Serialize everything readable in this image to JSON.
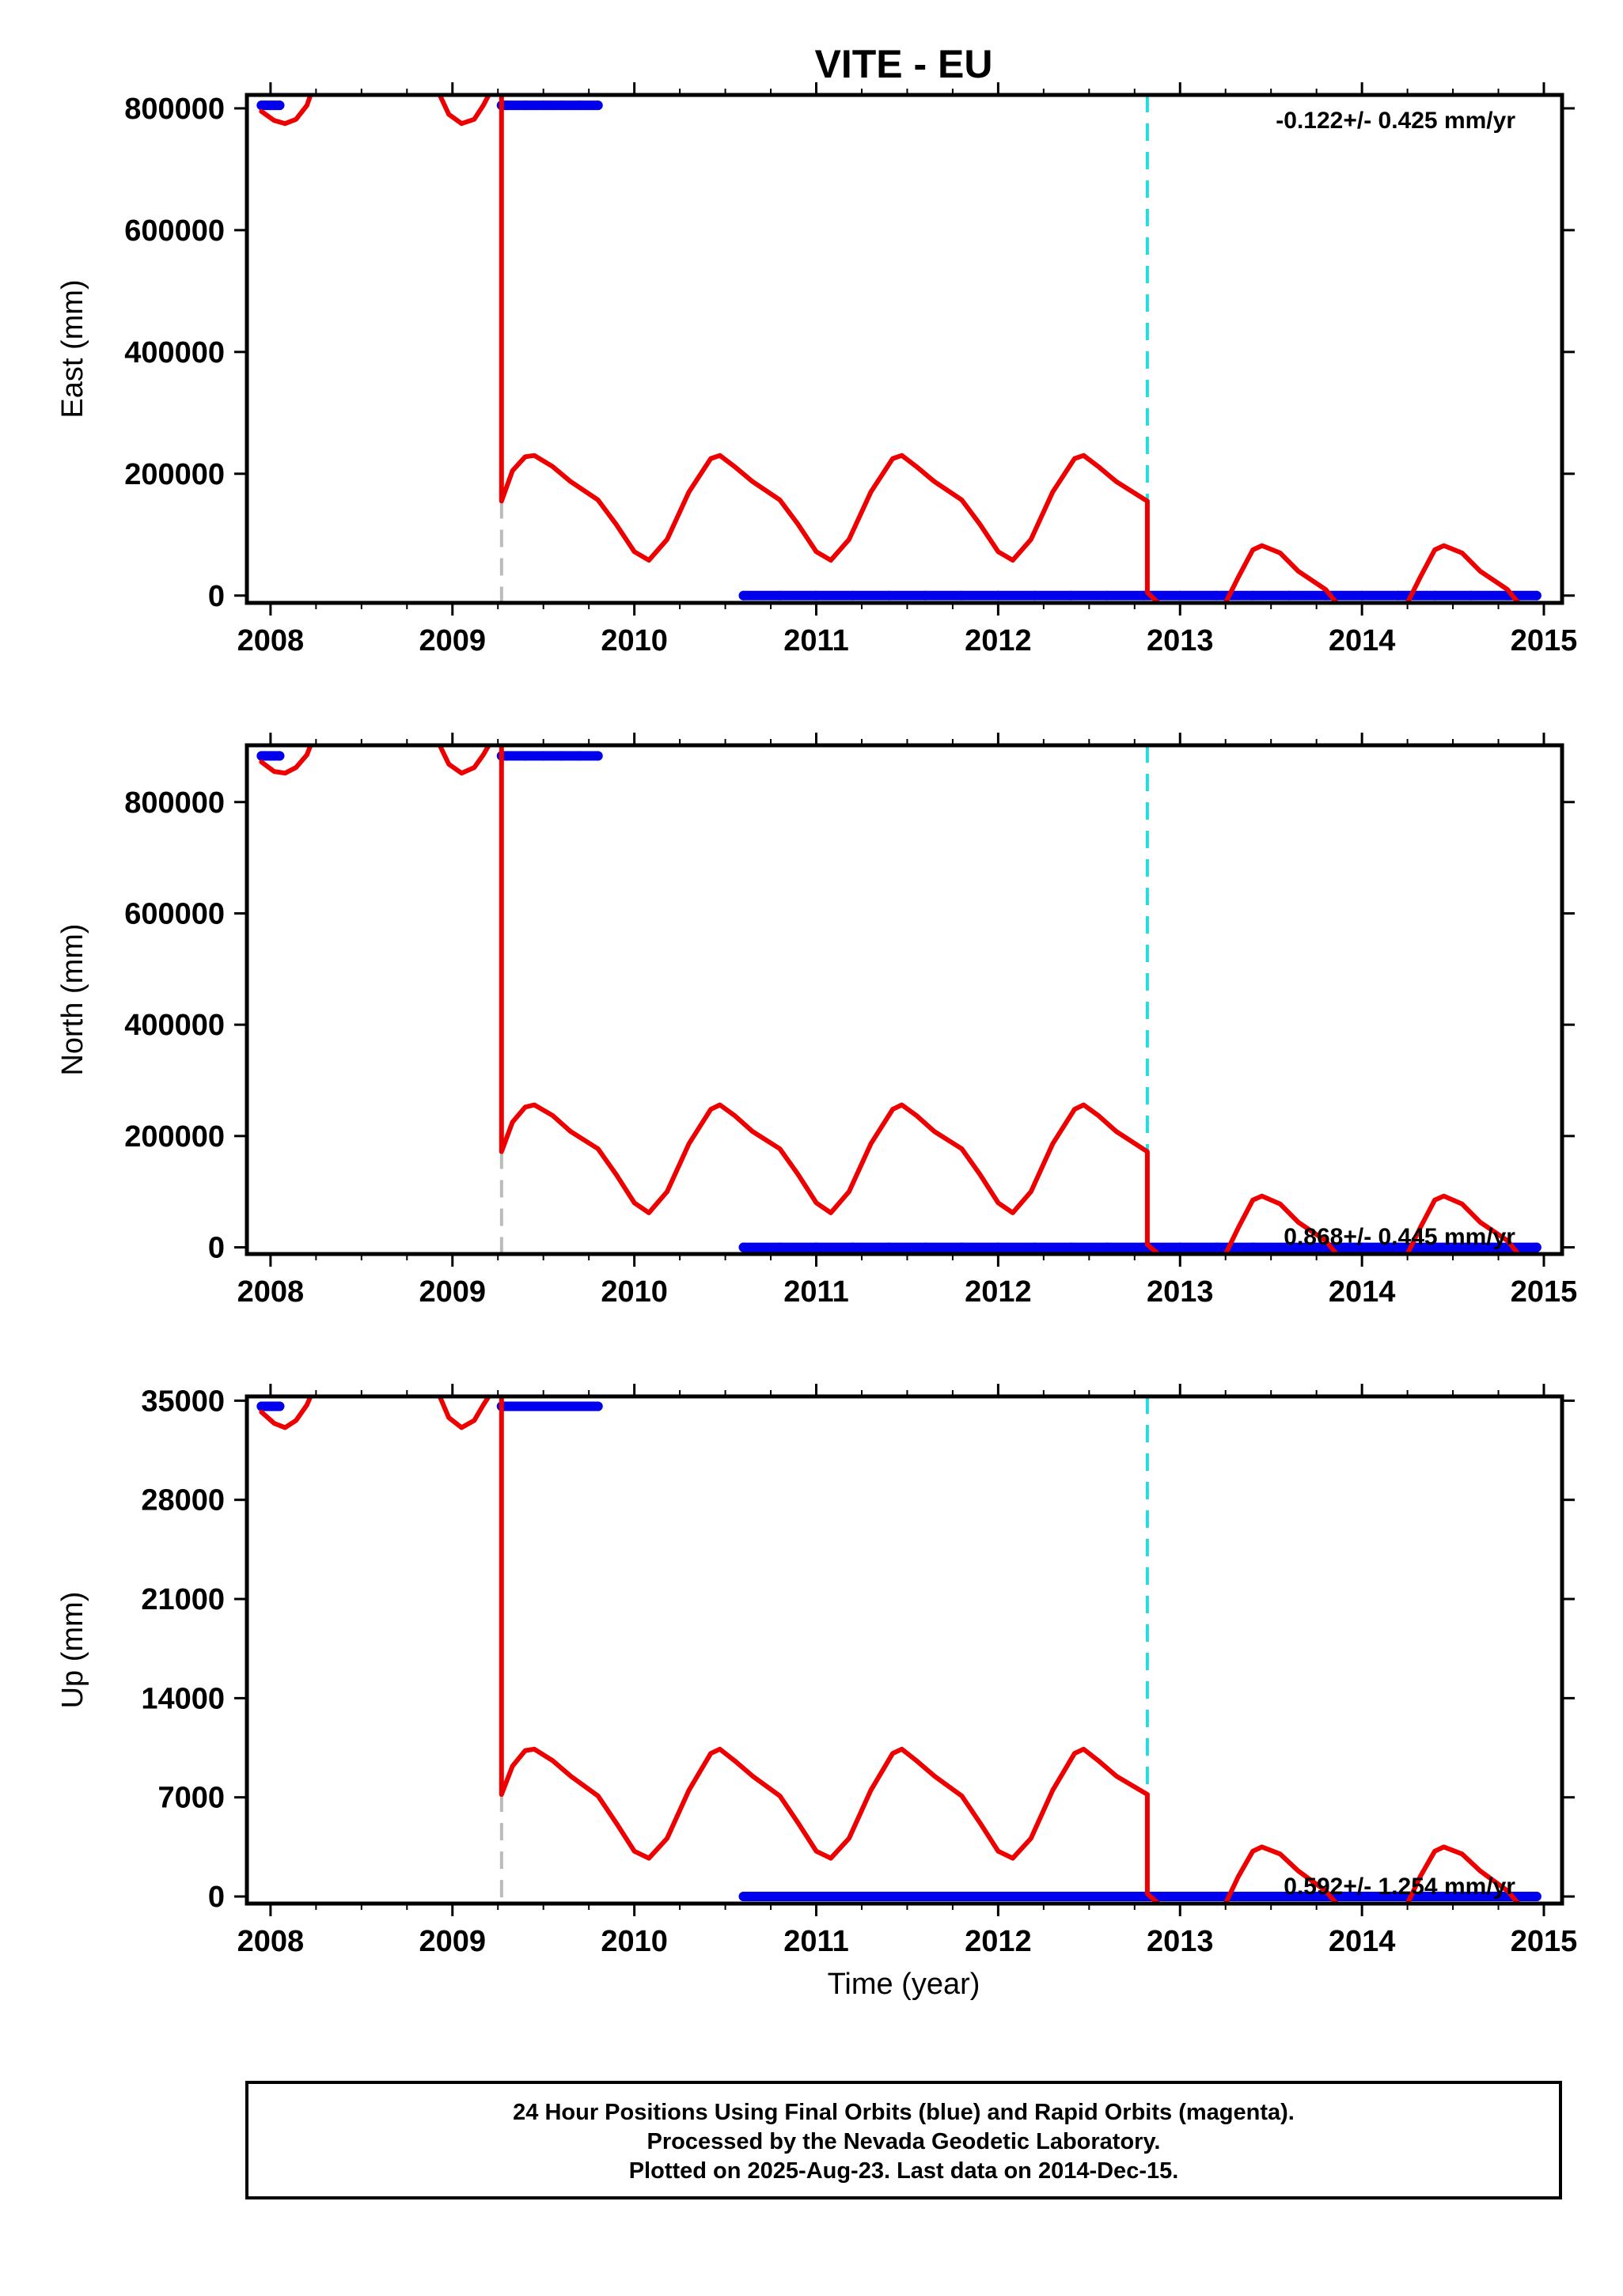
{
  "chart_data": {
    "type": "line",
    "title": "VITE - EU",
    "xlabel": "Time (year)",
    "xlim": [
      2007.87,
      2015.1
    ],
    "x_ticks": [
      "2008",
      "2009",
      "2010",
      "2011",
      "2012",
      "2013",
      "2014",
      "2015"
    ],
    "grid": false,
    "reference_lines": [
      {
        "x": 2012.82,
        "style": "dashed",
        "color": "#22dddd"
      },
      {
        "x": 2009.27,
        "style": "dashed",
        "color": "#bbbbbb"
      }
    ],
    "panels": [
      {
        "id": "east",
        "ylabel": "East (mm)",
        "ylim": [
          -12000,
          822000
        ],
        "y_ticks": [
          0,
          200000,
          400000,
          600000,
          800000
        ],
        "y_tick_labels": [
          "0",
          "200000",
          "400000",
          "600000",
          "800000"
        ],
        "rate_label": "-0.122+/- 0.425 mm/yr",
        "rate_label_pos": "top-right",
        "series": [
          {
            "type": "scatter",
            "color": "#0000ee",
            "x": [
              2007.95,
              2007.97,
              2008.0,
              2008.02,
              2008.05
            ],
            "y": [
              805000,
              805000,
              805000,
              805000,
              805000
            ]
          },
          {
            "type": "scatter",
            "color": "#0000ee",
            "x": [
              2009.27,
              2009.3,
              2009.4,
              2009.5,
              2009.6,
              2009.7,
              2009.8
            ],
            "y": [
              805000,
              805000,
              805000,
              805000,
              805000,
              805000,
              805000
            ]
          },
          {
            "type": "scatter",
            "color": "#0000ee",
            "x": [
              2010.6,
              2010.8,
              2011.0,
              2011.2,
              2011.4,
              2011.6,
              2011.8,
              2012.0,
              2012.2,
              2012.4,
              2012.6,
              2012.8,
              2013.0,
              2013.2,
              2013.4,
              2013.6,
              2013.8,
              2014.0,
              2014.2,
              2014.4,
              2014.6,
              2014.8,
              2014.96
            ],
            "y": [
              0,
              0,
              0,
              0,
              0,
              0,
              0,
              0,
              0,
              0,
              0,
              0,
              0,
              0,
              0,
              0,
              0,
              0,
              0,
              0,
              0,
              0,
              0
            ]
          },
          {
            "type": "line",
            "color": "#ee0000",
            "x": [
              2007.95,
              2008.02,
              2008.08,
              2008.14,
              2008.2,
              2008.22
            ],
            "y": [
              795000,
              780000,
              775000,
              782000,
              805000,
              822000
            ]
          },
          {
            "type": "line",
            "color": "#ee0000",
            "x": [
              2008.93,
              2008.98,
              2009.05,
              2009.12,
              2009.17,
              2009.2
            ],
            "y": [
              822000,
              790000,
              775000,
              782000,
              805000,
              822000
            ]
          },
          {
            "type": "line",
            "color": "#ee0000",
            "x": [
              2009.27,
              2009.27,
              2009.27,
              2009.33,
              2009.4,
              2009.45,
              2009.55,
              2009.65,
              2009.8,
              2009.9,
              2010.0,
              2010.08,
              2010.18,
              2010.3,
              2010.42,
              2010.47,
              2010.55,
              2010.65,
              2010.8,
              2010.9,
              2011.0,
              2011.08,
              2011.18,
              2011.3,
              2011.42,
              2011.47,
              2011.55,
              2011.65,
              2011.8,
              2011.9,
              2012.0,
              2012.08,
              2012.18,
              2012.3,
              2012.42,
              2012.47,
              2012.55,
              2012.65,
              2012.82,
              2012.82,
              2012.88
            ],
            "y": [
              822000,
              670000,
              155000,
              205000,
              228000,
              230000,
              212000,
              187000,
              157000,
              117000,
              72000,
              58000,
              92000,
              170000,
              225000,
              230000,
              212000,
              187000,
              157000,
              117000,
              72000,
              58000,
              92000,
              170000,
              225000,
              230000,
              212000,
              187000,
              157000,
              117000,
              72000,
              58000,
              92000,
              170000,
              225000,
              230000,
              212000,
              187000,
              155000,
              5000,
              -12000
            ]
          },
          {
            "type": "line",
            "color": "#ee0000",
            "x": [
              2013.25,
              2013.32,
              2013.4,
              2013.45,
              2013.55,
              2013.65,
              2013.8,
              2013.86
            ],
            "y": [
              -12000,
              30000,
              75000,
              82000,
              70000,
              40000,
              10000,
              -12000
            ]
          },
          {
            "type": "line",
            "color": "#ee0000",
            "x": [
              2014.25,
              2014.32,
              2014.4,
              2014.45,
              2014.55,
              2014.65,
              2014.8,
              2014.86
            ],
            "y": [
              -12000,
              30000,
              75000,
              82000,
              70000,
              40000,
              10000,
              -12000
            ]
          }
        ]
      },
      {
        "id": "north",
        "ylabel": "North (mm)",
        "ylim": [
          -12000,
          902000
        ],
        "y_ticks": [
          0,
          200000,
          400000,
          600000,
          800000
        ],
        "y_tick_labels": [
          "0",
          "200000",
          "400000",
          "600000",
          "800000"
        ],
        "rate_label": "0.868+/- 0.445 mm/yr",
        "rate_label_pos": "bottom-right",
        "series": [
          {
            "type": "scatter",
            "color": "#0000ee",
            "x": [
              2007.95,
              2007.97,
              2008.0,
              2008.02,
              2008.05
            ],
            "y": [
              883000,
              883000,
              883000,
              883000,
              883000
            ]
          },
          {
            "type": "scatter",
            "color": "#0000ee",
            "x": [
              2009.27,
              2009.3,
              2009.4,
              2009.5,
              2009.6,
              2009.7,
              2009.8
            ],
            "y": [
              883000,
              883000,
              883000,
              883000,
              883000,
              883000,
              883000
            ]
          },
          {
            "type": "scatter",
            "color": "#0000ee",
            "x": [
              2010.6,
              2010.8,
              2011.0,
              2011.2,
              2011.4,
              2011.6,
              2011.8,
              2012.0,
              2012.2,
              2012.4,
              2012.6,
              2012.8,
              2013.0,
              2013.2,
              2013.4,
              2013.6,
              2013.8,
              2014.0,
              2014.2,
              2014.4,
              2014.6,
              2014.8,
              2014.96
            ],
            "y": [
              0,
              0,
              0,
              0,
              0,
              0,
              0,
              0,
              0,
              0,
              0,
              0,
              0,
              0,
              0,
              0,
              0,
              0,
              0,
              0,
              0,
              0,
              0
            ]
          },
          {
            "type": "line",
            "color": "#ee0000",
            "x": [
              2007.95,
              2008.02,
              2008.08,
              2008.14,
              2008.2,
              2008.22
            ],
            "y": [
              872000,
              855000,
              852000,
              862000,
              885000,
              902000
            ]
          },
          {
            "type": "line",
            "color": "#ee0000",
            "x": [
              2008.93,
              2008.98,
              2009.05,
              2009.12,
              2009.17,
              2009.2
            ],
            "y": [
              902000,
              868000,
              852000,
              862000,
              885000,
              902000
            ]
          },
          {
            "type": "line",
            "color": "#ee0000",
            "x": [
              2009.27,
              2009.27,
              2009.27,
              2009.33,
              2009.4,
              2009.45,
              2009.55,
              2009.65,
              2009.8,
              2009.9,
              2010.0,
              2010.08,
              2010.18,
              2010.3,
              2010.42,
              2010.47,
              2010.55,
              2010.65,
              2010.8,
              2010.9,
              2011.0,
              2011.08,
              2011.18,
              2011.3,
              2011.42,
              2011.47,
              2011.55,
              2011.65,
              2011.8,
              2011.9,
              2012.0,
              2012.08,
              2012.18,
              2012.3,
              2012.42,
              2012.47,
              2012.55,
              2012.65,
              2012.82,
              2012.82,
              2012.88
            ],
            "y": [
              902000,
              740000,
              172000,
              225000,
              252000,
              256000,
              237000,
              208000,
              177000,
              131000,
              80000,
              62000,
              100000,
              186000,
              248000,
              256000,
              237000,
              208000,
              177000,
              131000,
              80000,
              62000,
              100000,
              186000,
              248000,
              256000,
              237000,
              208000,
              177000,
              131000,
              80000,
              62000,
              100000,
              186000,
              248000,
              256000,
              237000,
              208000,
              172000,
              5000,
              -12000
            ]
          },
          {
            "type": "line",
            "color": "#ee0000",
            "x": [
              2013.25,
              2013.32,
              2013.4,
              2013.45,
              2013.55,
              2013.65,
              2013.8,
              2013.86
            ],
            "y": [
              -12000,
              35000,
              85000,
              92000,
              78000,
              45000,
              12000,
              -12000
            ]
          },
          {
            "type": "line",
            "color": "#ee0000",
            "x": [
              2014.25,
              2014.32,
              2014.4,
              2014.45,
              2014.55,
              2014.65,
              2014.8,
              2014.86
            ],
            "y": [
              -12000,
              35000,
              85000,
              92000,
              78000,
              45000,
              12000,
              -12000
            ]
          }
        ]
      },
      {
        "id": "up",
        "ylabel": "Up (mm)",
        "ylim": [
          -500,
          35300
        ],
        "y_ticks": [
          0,
          7000,
          14000,
          21000,
          28000,
          35000
        ],
        "y_tick_labels": [
          "0",
          "7000",
          "14000",
          "21000",
          "28000",
          "35000"
        ],
        "rate_label": "0.592+/- 1.254 mm/yr",
        "rate_label_pos": "bottom-right",
        "series": [
          {
            "type": "scatter",
            "color": "#0000ee",
            "x": [
              2007.95,
              2007.97,
              2008.0,
              2008.02,
              2008.05
            ],
            "y": [
              34600,
              34600,
              34600,
              34600,
              34600
            ]
          },
          {
            "type": "scatter",
            "color": "#0000ee",
            "x": [
              2009.27,
              2009.3,
              2009.4,
              2009.5,
              2009.6,
              2009.7,
              2009.8
            ],
            "y": [
              34600,
              34600,
              34600,
              34600,
              34600,
              34600,
              34600
            ]
          },
          {
            "type": "scatter",
            "color": "#0000ee",
            "x": [
              2010.6,
              2010.8,
              2011.0,
              2011.2,
              2011.4,
              2011.6,
              2011.8,
              2012.0,
              2012.2,
              2012.4,
              2012.6,
              2012.8,
              2013.0,
              2013.2,
              2013.4,
              2013.6,
              2013.8,
              2014.0,
              2014.2,
              2014.4,
              2014.6,
              2014.8,
              2014.96
            ],
            "y": [
              0,
              0,
              0,
              0,
              0,
              0,
              0,
              0,
              0,
              0,
              0,
              0,
              0,
              0,
              0,
              0,
              0,
              0,
              0,
              0,
              0,
              0,
              0
            ]
          },
          {
            "type": "line",
            "color": "#ee0000",
            "x": [
              2007.95,
              2008.02,
              2008.08,
              2008.14,
              2008.2,
              2008.22
            ],
            "y": [
              34200,
              33400,
              33100,
              33600,
              34700,
              35300
            ]
          },
          {
            "type": "line",
            "color": "#ee0000",
            "x": [
              2008.93,
              2008.98,
              2009.05,
              2009.12,
              2009.17,
              2009.2
            ],
            "y": [
              35300,
              33800,
              33100,
              33600,
              34700,
              35300
            ]
          },
          {
            "type": "line",
            "color": "#ee0000",
            "x": [
              2009.27,
              2009.27,
              2009.27,
              2009.33,
              2009.4,
              2009.45,
              2009.55,
              2009.65,
              2009.8,
              2009.9,
              2010.0,
              2010.08,
              2010.18,
              2010.3,
              2010.42,
              2010.47,
              2010.55,
              2010.65,
              2010.8,
              2010.9,
              2011.0,
              2011.08,
              2011.18,
              2011.3,
              2011.42,
              2011.47,
              2011.55,
              2011.65,
              2011.8,
              2011.9,
              2012.0,
              2012.08,
              2012.18,
              2012.3,
              2012.42,
              2012.47,
              2012.55,
              2012.65,
              2012.82,
              2012.82,
              2012.88
            ],
            "y": [
              35300,
              29000,
              7200,
              9200,
              10300,
              10400,
              9600,
              8500,
              7100,
              5200,
              3200,
              2700,
              4100,
              7500,
              10100,
              10400,
              9600,
              8500,
              7100,
              5200,
              3200,
              2700,
              4100,
              7500,
              10100,
              10400,
              9600,
              8500,
              7100,
              5200,
              3200,
              2700,
              4100,
              7500,
              10100,
              10400,
              9600,
              8500,
              7200,
              200,
              -500
            ]
          },
          {
            "type": "line",
            "color": "#ee0000",
            "x": [
              2013.25,
              2013.32,
              2013.4,
              2013.45,
              2013.55,
              2013.65,
              2013.8,
              2013.86
            ],
            "y": [
              -500,
              1400,
              3200,
              3500,
              3000,
              1800,
              400,
              -500
            ]
          },
          {
            "type": "line",
            "color": "#ee0000",
            "x": [
              2014.25,
              2014.32,
              2014.4,
              2014.45,
              2014.55,
              2014.65,
              2014.8,
              2014.86
            ],
            "y": [
              -500,
              1400,
              3200,
              3500,
              3000,
              1800,
              400,
              -500
            ]
          }
        ]
      }
    ]
  },
  "footer": {
    "line1": "24 Hour Positions Using Final Orbits (blue) and Rapid Orbits (magenta).",
    "line2": "Processed by the Nevada Geodetic Laboratory.",
    "line3": "Plotted on 2025-Aug-23. Last data on 2014-Dec-15."
  }
}
